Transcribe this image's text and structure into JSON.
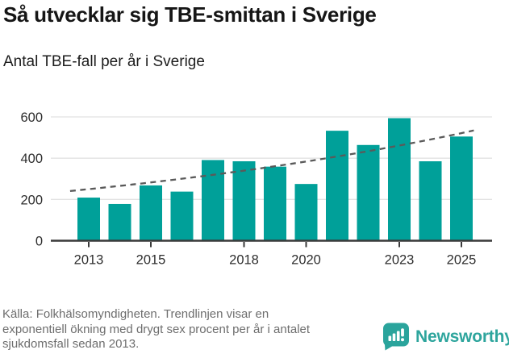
{
  "header": {
    "title": "Så utvecklar sig TBE-smittan i Sverige",
    "subtitle": "Antal TBE-fall per år i Sverige"
  },
  "chart_data": {
    "type": "bar",
    "title": "Antal TBE-fall per år i Sverige",
    "categories": [
      2013,
      2014,
      2015,
      2016,
      2017,
      2018,
      2019,
      2020,
      2021,
      2022,
      2023,
      2024,
      2025
    ],
    "values": [
      209,
      178,
      268,
      238,
      391,
      385,
      359,
      275,
      533,
      464,
      594,
      385,
      505
    ],
    "series_name": "Antal TBE-fall",
    "x_tick_labels": [
      "2013",
      "2015",
      "2018",
      "2020",
      "2023",
      "2025"
    ],
    "x_tick_years": [
      2013,
      2015,
      2018,
      2020,
      2023,
      2025
    ],
    "y_ticks": [
      0,
      200,
      400,
      600
    ],
    "ylim": [
      0,
      620
    ],
    "grid": true,
    "legend": "none",
    "bar_color": "#00a099",
    "axis_color": "#3a3a3a",
    "grid_color": "#e2e2e2",
    "tick_label_color": "#2e2e2e",
    "trendline": {
      "style": "dashed",
      "color": "#5a5a5a",
      "description": "exponentiell trend, ca +6 % per år sedan 2013",
      "start_value": 250,
      "growth_rate": 1.0632,
      "t_start": -0.6,
      "t_end": 12.4
    }
  },
  "footer": {
    "source_lines": [
      "Källa: Folkhälsomyndigheten. Trendlinjen visar en",
      "exponentiell ökning med drygt sex procent per år i antalet",
      "sjukdomsfall sedan 2013."
    ],
    "logo_text": "Newsworthy",
    "logo_color": "#2aa49c"
  }
}
